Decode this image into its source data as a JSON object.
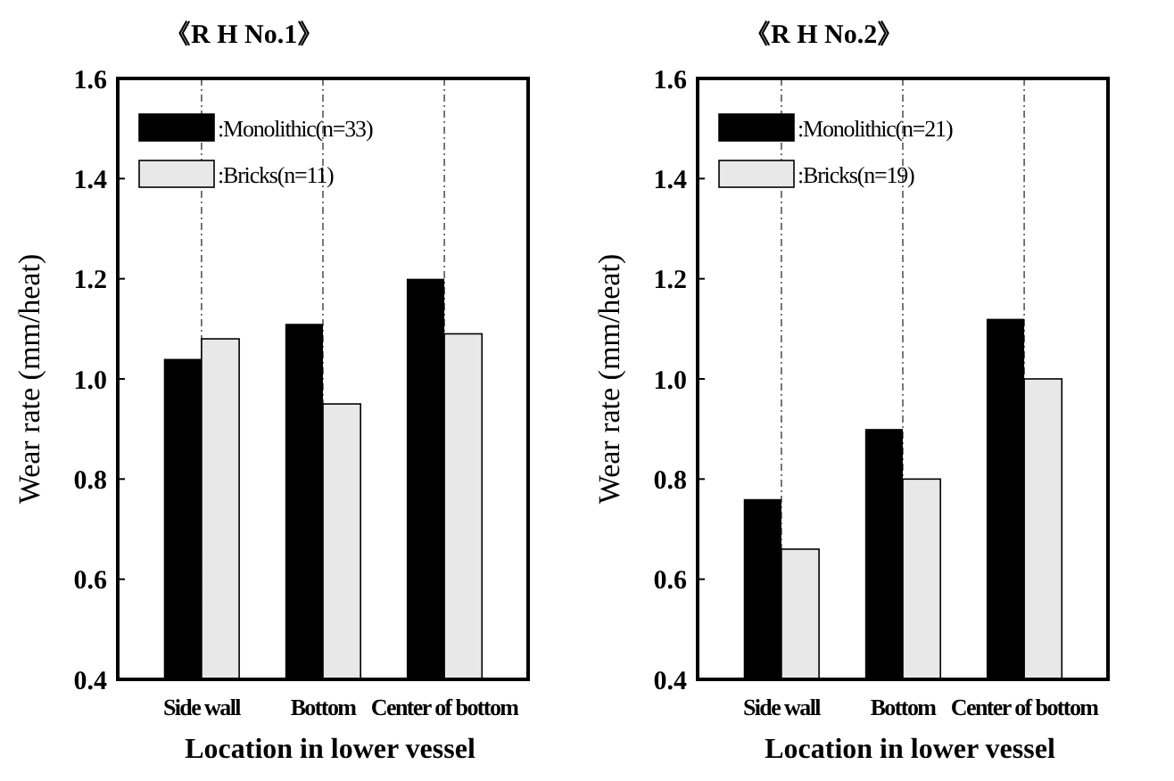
{
  "chart_data": [
    {
      "type": "bar",
      "title": "《R H  No.1》",
      "xlabel": "Location in lower vessel",
      "ylabel": "Wear rate (mm/heat)",
      "categories": [
        "Side wall",
        "Bottom",
        "Center of bottom"
      ],
      "series": [
        {
          "name": ":Monolithic(n=33)",
          "color": "#000000",
          "values": [
            1.04,
            1.11,
            1.2
          ]
        },
        {
          "name": ":Bricks(n=11)",
          "color": "#e8e8e8",
          "values": [
            1.08,
            0.95,
            1.09
          ]
        }
      ],
      "ylim": [
        0.4,
        1.6
      ],
      "yticks": [
        0.4,
        0.6,
        0.8,
        {
          "value": 1,
          "label": "1.0"
        },
        1.2,
        1.4,
        1.6
      ],
      "grid": "x",
      "legend": "top left"
    },
    {
      "type": "bar",
      "title": "《R H  No.2》",
      "xlabel": "Location in lower vessel",
      "ylabel": "Wear rate (mm/heat)",
      "categories": [
        "Side wall",
        "Bottom",
        "Center of bottom"
      ],
      "series": [
        {
          "name": ":Monolithic(n=21)",
          "color": "#000000",
          "values": [
            0.76,
            0.9,
            1.12
          ]
        },
        {
          "name": ":Bricks(n=19)",
          "color": "#e8e8e8",
          "values": [
            0.66,
            0.8,
            1.0
          ]
        }
      ],
      "ylim": [
        0.4,
        1.6
      ],
      "yticks": [
        0.4,
        0.6,
        0.8,
        {
          "value": 1,
          "label": "1.0"
        },
        1.2,
        1.4,
        1.6
      ],
      "grid": "x",
      "legend": "top left"
    }
  ]
}
